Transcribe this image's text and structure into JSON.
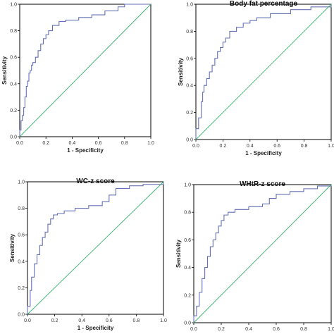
{
  "chart_data": [
    {
      "type": "line",
      "title": "",
      "xlabel": "1 - Specificity",
      "ylabel": "Sensitivity",
      "xlim": [
        0,
        1
      ],
      "ylim": [
        0,
        1
      ],
      "x_ticks": [
        "0.0",
        "0.2",
        "0.4",
        "0.6",
        "0.8",
        "1.0"
      ],
      "y_ticks": [
        "0.0",
        "0.2",
        "0.4",
        "0.6",
        "0.8",
        "1.0"
      ],
      "grid": false,
      "legend": "none",
      "series": [
        {
          "color": "#6470b4",
          "x": [
            0,
            0,
            0.01,
            0.01,
            0.02,
            0.02,
            0.03,
            0.03,
            0.04,
            0.04,
            0.05,
            0.05,
            0.06,
            0.06,
            0.07,
            0.07,
            0.08,
            0.08,
            0.09,
            0.09,
            0.1,
            0.1,
            0.12,
            0.12,
            0.14,
            0.14,
            0.16,
            0.16,
            0.18,
            0.18,
            0.2,
            0.2,
            0.22,
            0.22,
            0.25,
            0.25,
            0.3,
            0.3,
            0.35,
            0.35,
            0.45,
            0.45,
            0.55,
            0.55,
            0.65,
            0.65,
            0.75,
            0.75,
            0.8,
            0.8,
            1.0
          ],
          "y": [
            0,
            0.05,
            0.05,
            0.12,
            0.12,
            0.16,
            0.16,
            0.22,
            0.22,
            0.3,
            0.3,
            0.38,
            0.38,
            0.42,
            0.42,
            0.48,
            0.48,
            0.5,
            0.5,
            0.54,
            0.54,
            0.56,
            0.56,
            0.6,
            0.6,
            0.65,
            0.65,
            0.7,
            0.7,
            0.74,
            0.74,
            0.77,
            0.77,
            0.8,
            0.8,
            0.84,
            0.84,
            0.87,
            0.87,
            0.88,
            0.88,
            0.9,
            0.9,
            0.92,
            0.92,
            0.95,
            0.95,
            0.98,
            0.98,
            1.0,
            1.0
          ]
        },
        {
          "color": "#3cb371",
          "x": [
            0,
            1
          ],
          "y": [
            0,
            1
          ]
        }
      ]
    },
    {
      "type": "line",
      "title": "Body fat percentage",
      "xlabel": "1 - Specificity",
      "ylabel": "Sensitivity",
      "xlim": [
        0,
        1
      ],
      "ylim": [
        0,
        1
      ],
      "x_ticks": [
        "0.0",
        "0.2",
        "0.4",
        "0.6",
        "0.8",
        "1.0"
      ],
      "y_ticks": [
        "0.0",
        "0.2",
        "0.4",
        "0.6",
        "0.8",
        "1.0"
      ],
      "grid": false,
      "legend": "none",
      "series": [
        {
          "color": "#6470b4",
          "x": [
            0,
            0,
            0.02,
            0.02,
            0.04,
            0.04,
            0.05,
            0.05,
            0.06,
            0.06,
            0.08,
            0.08,
            0.1,
            0.1,
            0.12,
            0.12,
            0.14,
            0.14,
            0.16,
            0.16,
            0.18,
            0.18,
            0.2,
            0.2,
            0.22,
            0.22,
            0.25,
            0.25,
            0.3,
            0.3,
            0.35,
            0.35,
            0.4,
            0.4,
            0.45,
            0.45,
            0.55,
            0.55,
            0.7,
            0.7,
            0.85,
            0.85,
            1.0,
            1.0
          ],
          "y": [
            0,
            0.08,
            0.08,
            0.16,
            0.16,
            0.28,
            0.28,
            0.35,
            0.35,
            0.4,
            0.4,
            0.45,
            0.45,
            0.5,
            0.5,
            0.55,
            0.55,
            0.6,
            0.6,
            0.65,
            0.65,
            0.68,
            0.68,
            0.72,
            0.72,
            0.75,
            0.75,
            0.8,
            0.8,
            0.83,
            0.83,
            0.86,
            0.86,
            0.88,
            0.88,
            0.9,
            0.9,
            0.93,
            0.93,
            0.96,
            0.96,
            0.98,
            0.98,
            1.0
          ]
        },
        {
          "color": "#3cb371",
          "x": [
            0,
            1
          ],
          "y": [
            0,
            1
          ]
        }
      ]
    },
    {
      "type": "line",
      "title": "WC-z score",
      "xlabel": "1 - Specificity",
      "ylabel": "Sensitivity",
      "xlim": [
        0,
        1
      ],
      "ylim": [
        0,
        1
      ],
      "x_ticks": [
        "0.0",
        "0.2",
        "0.4",
        "0.6",
        "0.8",
        "1.0"
      ],
      "y_ticks": [
        "0.0",
        "0.2",
        "0.4",
        "0.6",
        "0.8",
        "1.0"
      ],
      "grid": false,
      "legend": "none",
      "series": [
        {
          "color": "#6470b4",
          "x": [
            0,
            0,
            0.02,
            0.02,
            0.03,
            0.03,
            0.05,
            0.05,
            0.07,
            0.07,
            0.09,
            0.09,
            0.11,
            0.11,
            0.13,
            0.13,
            0.15,
            0.15,
            0.17,
            0.17,
            0.19,
            0.19,
            0.22,
            0.22,
            0.27,
            0.27,
            0.35,
            0.35,
            0.45,
            0.45,
            0.55,
            0.55,
            0.6,
            0.6,
            0.65,
            0.65,
            0.75,
            0.75,
            0.85,
            0.85,
            1.0,
            1.0
          ],
          "y": [
            0,
            0.06,
            0.06,
            0.18,
            0.18,
            0.28,
            0.28,
            0.38,
            0.38,
            0.45,
            0.45,
            0.52,
            0.52,
            0.58,
            0.58,
            0.62,
            0.62,
            0.68,
            0.68,
            0.72,
            0.72,
            0.75,
            0.75,
            0.76,
            0.76,
            0.78,
            0.78,
            0.8,
            0.8,
            0.82,
            0.82,
            0.85,
            0.85,
            0.9,
            0.9,
            0.95,
            0.95,
            0.97,
            0.97,
            0.98,
            0.98,
            1.0
          ]
        },
        {
          "color": "#3cb371",
          "x": [
            0,
            1
          ],
          "y": [
            0,
            1
          ]
        }
      ]
    },
    {
      "type": "line",
      "title": "WHtR-z score",
      "xlabel": "1 - Specificity",
      "ylabel": "Sensitivity",
      "xlim": [
        0,
        1
      ],
      "ylim": [
        0,
        1
      ],
      "x_ticks": [
        "0.0",
        "0.2",
        "0.4",
        "0.6",
        "0.8",
        "1.0"
      ],
      "y_ticks": [
        "0.0",
        "0.2",
        "0.4",
        "0.6",
        "0.8",
        "1.0"
      ],
      "grid": false,
      "legend": "none",
      "series": [
        {
          "color": "#6470b4",
          "x": [
            0,
            0,
            0.02,
            0.02,
            0.04,
            0.04,
            0.06,
            0.06,
            0.08,
            0.08,
            0.1,
            0.1,
            0.12,
            0.12,
            0.14,
            0.14,
            0.16,
            0.16,
            0.18,
            0.18,
            0.2,
            0.2,
            0.22,
            0.22,
            0.25,
            0.25,
            0.3,
            0.3,
            0.4,
            0.4,
            0.5,
            0.5,
            0.55,
            0.55,
            0.6,
            0.6,
            0.7,
            0.7,
            0.8,
            0.8,
            0.9,
            0.9,
            1.0,
            1.0
          ],
          "y": [
            0,
            0.05,
            0.05,
            0.12,
            0.12,
            0.22,
            0.22,
            0.32,
            0.32,
            0.4,
            0.4,
            0.48,
            0.48,
            0.55,
            0.55,
            0.6,
            0.6,
            0.65,
            0.65,
            0.7,
            0.7,
            0.74,
            0.74,
            0.78,
            0.78,
            0.8,
            0.8,
            0.82,
            0.82,
            0.84,
            0.84,
            0.86,
            0.86,
            0.9,
            0.9,
            0.93,
            0.93,
            0.95,
            0.95,
            0.97,
            0.97,
            0.99,
            0.99,
            1.0
          ]
        },
        {
          "color": "#3cb371",
          "x": [
            0,
            1
          ],
          "y": [
            0,
            1
          ]
        }
      ]
    }
  ]
}
